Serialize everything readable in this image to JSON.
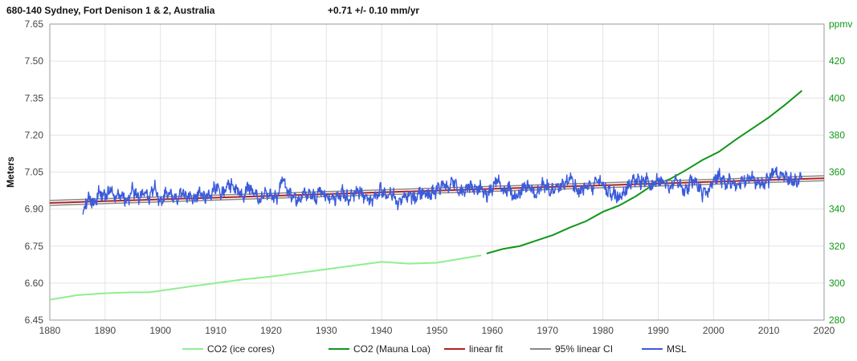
{
  "chart_data": {
    "type": "line",
    "title": "680-140 Sydney, Fort Denison 1 & 2, Australia",
    "trend_label": "+0.71 +/- 0.10 mm/yr",
    "xlabel": "",
    "ylabel": "Meters",
    "y2label": "ppmv",
    "xlim": [
      1880,
      2020
    ],
    "ylim": [
      6.45,
      7.65
    ],
    "y2lim": [
      280,
      440
    ],
    "x_ticks": [
      "1880",
      "1890",
      "1900",
      "1910",
      "1920",
      "1930",
      "1940",
      "1950",
      "1960",
      "1970",
      "1980",
      "1990",
      "2000",
      "2010",
      "2020"
    ],
    "y_ticks": [
      "6.45",
      "6.60",
      "6.75",
      "6.90",
      "7.05",
      "7.20",
      "7.35",
      "7.50",
      "7.65"
    ],
    "y2_ticks": [
      "280",
      "300",
      "320",
      "340",
      "360",
      "380",
      "400",
      "420"
    ],
    "grid": true,
    "legend_position": "bottom",
    "colors": {
      "co2_ice": "#90ee90",
      "co2_mauna": "#109618",
      "fit": "#b22222",
      "ci": "#888888",
      "msl": "#3b5bdb",
      "y2axis": "#109618"
    },
    "series": [
      {
        "name": "CO2 (ice cores)",
        "axis": "right",
        "x": [
          1880,
          1885,
          1890,
          1895,
          1898,
          1905,
          1910,
          1915,
          1920,
          1925,
          1930,
          1935,
          1940,
          1945,
          1950,
          1955,
          1958
        ],
        "values": [
          291,
          293.5,
          294.5,
          295,
          295,
          298,
          300,
          302,
          303.5,
          305.5,
          307.5,
          309.5,
          311.5,
          310.5,
          311,
          313.5,
          315
        ]
      },
      {
        "name": "CO2 (Mauna Loa)",
        "axis": "right",
        "x": [
          1959,
          1962,
          1965,
          1968,
          1971,
          1974,
          1977,
          1980,
          1983,
          1986,
          1989,
          1992,
          1995,
          1998,
          2001,
          2004,
          2007,
          2010,
          2013,
          2016
        ],
        "values": [
          316,
          318.5,
          320,
          323,
          326,
          330,
          333.5,
          338.5,
          342,
          347,
          353,
          356,
          361,
          366.5,
          371,
          377.5,
          383.5,
          389.5,
          396.5,
          404
        ]
      },
      {
        "name": "linear fit",
        "axis": "left",
        "x": [
          1880,
          2020
        ],
        "values": [
          6.925,
          7.025
        ]
      },
      {
        "name": "95% linear CI",
        "axis": "left",
        "x": [
          1880,
          2020
        ],
        "upper": [
          6.935,
          7.035
        ],
        "lower": [
          6.915,
          7.015
        ]
      },
      {
        "name": "MSL",
        "axis": "left",
        "x": [
          1886.0,
          1887.0,
          1888.0,
          1889.0,
          1890.0,
          1891.0,
          1892.0,
          1893.0,
          1894.0,
          1895.0,
          1896.0,
          1897.0,
          1898.0,
          1899.0,
          1900.0,
          1901.0,
          1902.0,
          1903.0,
          1904.0,
          1905.0,
          1906.0,
          1907.0,
          1908.0,
          1909.0,
          1910.0,
          1911.0,
          1912.0,
          1913.0,
          1914.0,
          1915.0,
          1916.0,
          1917.0,
          1918.0,
          1919.0,
          1920.0,
          1921.0,
          1922.0,
          1923.0,
          1924.0,
          1925.0,
          1926.0,
          1927.0,
          1928.0,
          1929.0,
          1930.0,
          1931.0,
          1932.0,
          1933.0,
          1934.0,
          1935.0,
          1936.0,
          1937.0,
          1938.0,
          1939.0,
          1940.0,
          1941.0,
          1942.0,
          1943.0,
          1944.0,
          1945.0,
          1946.0,
          1947.0,
          1948.0,
          1949.0,
          1950.0,
          1951.0,
          1952.0,
          1953.0,
          1954.0,
          1955.0,
          1956.0,
          1957.0,
          1958.0,
          1959.0,
          1960.0,
          1961.0,
          1962.0,
          1963.0,
          1964.0,
          1965.0,
          1966.0,
          1967.0,
          1968.0,
          1969.0,
          1970.0,
          1971.0,
          1972.0,
          1973.0,
          1974.0,
          1975.0,
          1976.0,
          1977.0,
          1978.0,
          1979.0,
          1980.0,
          1981.0,
          1982.0,
          1983.0,
          1984.0,
          1985.0,
          1986.0,
          1987.0,
          1988.0,
          1989.0,
          1990.0,
          1991.0,
          1992.0,
          1993.0,
          1994.0,
          1995.0,
          1996.0,
          1997.0,
          1998.0,
          1999.0,
          2000.0,
          2001.0,
          2002.0,
          2003.0,
          2004.0,
          2005.0,
          2006.0,
          2007.0,
          2008.0,
          2009.0,
          2010.0,
          2011.0,
          2012.0,
          2013.0,
          2014.0,
          2015.0,
          2016.0
        ],
        "values": [
          6.9,
          6.94,
          6.93,
          6.97,
          6.95,
          6.98,
          6.94,
          6.96,
          6.93,
          6.98,
          6.95,
          6.96,
          6.94,
          6.99,
          6.92,
          6.97,
          6.95,
          6.94,
          6.96,
          6.95,
          6.93,
          6.97,
          6.95,
          6.96,
          6.99,
          6.96,
          6.98,
          7.01,
          6.97,
          6.95,
          6.99,
          6.96,
          6.93,
          6.97,
          6.96,
          6.94,
          7.02,
          6.96,
          6.95,
          6.93,
          6.97,
          6.96,
          6.94,
          6.98,
          6.95,
          6.93,
          6.95,
          6.97,
          6.94,
          6.96,
          6.97,
          6.95,
          6.93,
          6.96,
          6.98,
          6.94,
          6.97,
          6.92,
          6.95,
          6.96,
          6.94,
          6.97,
          6.95,
          6.96,
          6.98,
          7.0,
          6.99,
          7.01,
          6.97,
          6.96,
          7.0,
          6.98,
          6.99,
          6.96,
          6.98,
          7.02,
          6.97,
          6.99,
          6.95,
          6.97,
          7.0,
          6.98,
          6.96,
          7.01,
          6.99,
          6.97,
          6.98,
          7.0,
          7.02,
          6.99,
          6.97,
          7.0,
          6.98,
          7.01,
          7.0,
          6.97,
          6.96,
          6.95,
          6.98,
          7.0,
          7.02,
          7.01,
          7.03,
          6.99,
          7.02,
          7.0,
          6.98,
          7.01,
          7.0,
          6.97,
          7.02,
          7.0,
          6.96,
          6.97,
          7.01,
          7.04,
          7.0,
          7.02,
          6.99,
          7.01,
          7.02,
          7.03,
          7.0,
          7.01,
          7.02,
          7.05,
          7.03,
          7.04,
          7.02,
          7.01,
          7.02
        ]
      }
    ]
  }
}
